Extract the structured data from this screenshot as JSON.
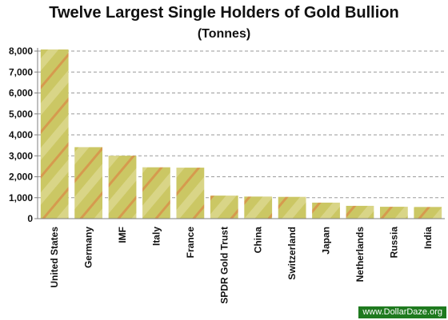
{
  "chart_data": {
    "type": "bar",
    "title": "Twelve Largest Single Holders of Gold Bullion",
    "subtitle": "(Tonnes)",
    "xlabel": "",
    "ylabel": "",
    "categories": [
      "United States",
      "Germany",
      "IMF",
      "Italy",
      "France",
      "SPDR Gold Trust",
      "China",
      "Switzerland",
      "Japan",
      "Netherlands",
      "Russia",
      "India"
    ],
    "values": [
      8134,
      3413,
      3005,
      2452,
      2435,
      1100,
      1054,
      1040,
      765,
      612,
      568,
      558
    ],
    "ylim": [
      0,
      8000
    ],
    "yticks": [
      0,
      1000,
      2000,
      3000,
      4000,
      5000,
      6000,
      7000,
      8000
    ],
    "ytick_labels": [
      "0",
      "1,000",
      "2,000",
      "3,000",
      "4,000",
      "5,000",
      "6,000",
      "7,000",
      "8,000"
    ],
    "grid": true,
    "legend": "none",
    "colors": {
      "bar_fill": "#cbc764",
      "bar_stripe": "#d9924a",
      "bar_highlight": "#e3dfa4",
      "grid": "#9a9a9a",
      "axis": "#7f7f7f"
    }
  },
  "watermark": "www.DollarDaze.org"
}
